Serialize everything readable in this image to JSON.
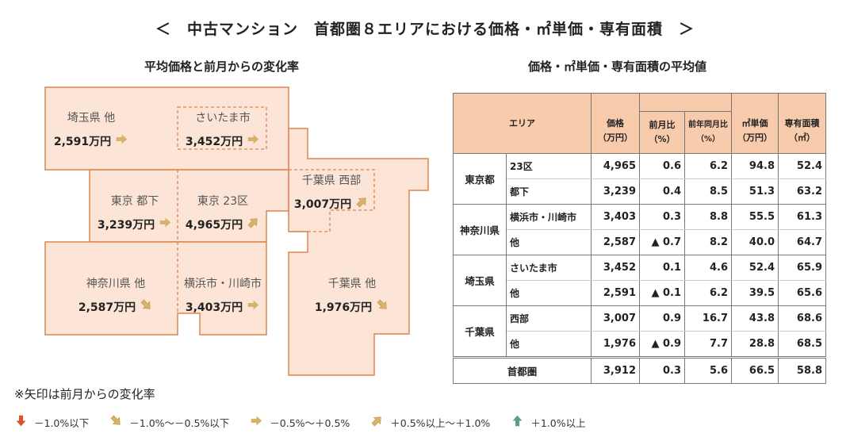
{
  "title": "＜　中古マンション　首都圏８エリアにおける価格・㎡単価・専有面積　＞",
  "map": {
    "subtitle": "平均価格と前月からの変化率",
    "fill": "#fce4d6",
    "stroke": "#e0834f",
    "arrow_color": "#d6b26a",
    "areas": [
      {
        "name": "埼玉県 他",
        "price": "2,591万円",
        "arrow": "arrow-right"
      },
      {
        "name": "さいたま市",
        "price": "3,452万円",
        "arrow": "arrow-right"
      },
      {
        "name": "東京 都下",
        "price": "3,239万円",
        "arrow": "arrow-right"
      },
      {
        "name": "東京 23区",
        "price": "4,965万円",
        "arrow": "arrow-up-right"
      },
      {
        "name": "千葉県 西部",
        "price": "3,007万円",
        "arrow": "arrow-up-right"
      },
      {
        "name": "神奈川県 他",
        "price": "2,587万円",
        "arrow": "arrow-down-right"
      },
      {
        "name": "横浜市・川崎市",
        "price": "3,403万円",
        "arrow": "arrow-right"
      },
      {
        "name": "千葉県 他",
        "price": "1,976万円",
        "arrow": "arrow-down-right"
      }
    ]
  },
  "table": {
    "subtitle": "価格・㎡単価・専有面積の平均値",
    "header_bg": "#f8cbad",
    "headers": {
      "area": "エリア",
      "price": "価格",
      "price_unit": "（万円）",
      "mom": "前月比",
      "mom_unit": "（%）",
      "yoy": "前年同月比",
      "yoy_unit": "（%）",
      "unit_price": "㎡単価",
      "unit_price_unit": "（万円）",
      "size": "専有面積",
      "size_unit": "（㎡）"
    },
    "groups": [
      {
        "pref": "東京都",
        "rows": [
          [
            "23区",
            "4,965",
            "0.6",
            "6.2",
            "94.8",
            "52.4"
          ],
          [
            "都下",
            "3,239",
            "0.4",
            "8.5",
            "51.3",
            "63.2"
          ]
        ]
      },
      {
        "pref": "神奈川県",
        "rows": [
          [
            "横浜市・川崎市",
            "3,403",
            "0.3",
            "8.8",
            "55.5",
            "61.3"
          ],
          [
            "他",
            "2,587",
            "▲ 0.7",
            "8.2",
            "40.0",
            "64.7"
          ]
        ]
      },
      {
        "pref": "埼玉県",
        "rows": [
          [
            "さいたま市",
            "3,452",
            "0.1",
            "4.6",
            "52.4",
            "65.9"
          ],
          [
            "他",
            "2,591",
            "▲ 0.1",
            "6.2",
            "39.5",
            "65.6"
          ]
        ]
      },
      {
        "pref": "千葉県",
        "rows": [
          [
            "西部",
            "3,007",
            "0.9",
            "16.7",
            "43.8",
            "68.6"
          ],
          [
            "他",
            "1,976",
            "▲ 0.9",
            "7.7",
            "28.8",
            "68.5"
          ]
        ]
      }
    ],
    "total": [
      "首都圏",
      "3,912",
      "0.3",
      "5.6",
      "66.5",
      "58.8"
    ]
  },
  "note": "※矢印は前月からの変化率",
  "legend": [
    {
      "icon": "arrow-down",
      "color": "#d9532b",
      "label": "－1.0%以下"
    },
    {
      "icon": "arrow-down-right",
      "color": "#d6b26a",
      "label": "－1.0%～－0.5%以下"
    },
    {
      "icon": "arrow-right",
      "color": "#d6b26a",
      "label": "－0.5%～＋0.5%"
    },
    {
      "icon": "arrow-up-right",
      "color": "#d6b26a",
      "label": "＋0.5%以上～＋1.0%"
    },
    {
      "icon": "arrow-up",
      "color": "#5e9e80",
      "label": "＋1.0%以上"
    }
  ]
}
